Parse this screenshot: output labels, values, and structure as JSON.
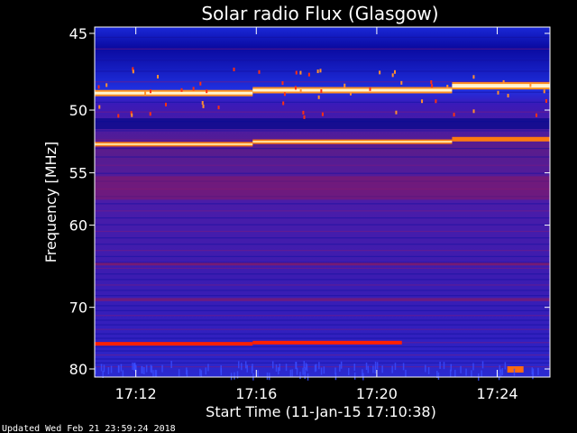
{
  "chart_data": {
    "type": "heatmap",
    "title": "Solar radio Flux (Glasgow)",
    "ylabel": "Frequency [MHz]",
    "xlabel": "Start Time (11-Jan-15 17:10:38)",
    "x_range_minutes": [
      "17:10:38",
      "17:25:45"
    ],
    "y_range_mhz": [
      45,
      80
    ],
    "x_ticks": [
      "17:12",
      "17:16",
      "17:20",
      "17:24"
    ],
    "y_ticks": [
      45,
      50,
      55,
      60,
      70,
      80
    ],
    "colors": {
      "background": "#000000",
      "low": "#2a1ab0",
      "mid": "#5a1aa0",
      "hot": "#ff2000",
      "peak": "#fff8d8"
    },
    "features": [
      {
        "name": "interference band",
        "freq_mhz": 48.6
      },
      {
        "name": "interference band",
        "freq_mhz": 52.4
      },
      {
        "name": "interference band",
        "freq_mhz": 75.5
      }
    ]
  },
  "footer": "Updated Wed Feb 21 23:59:24 2018"
}
